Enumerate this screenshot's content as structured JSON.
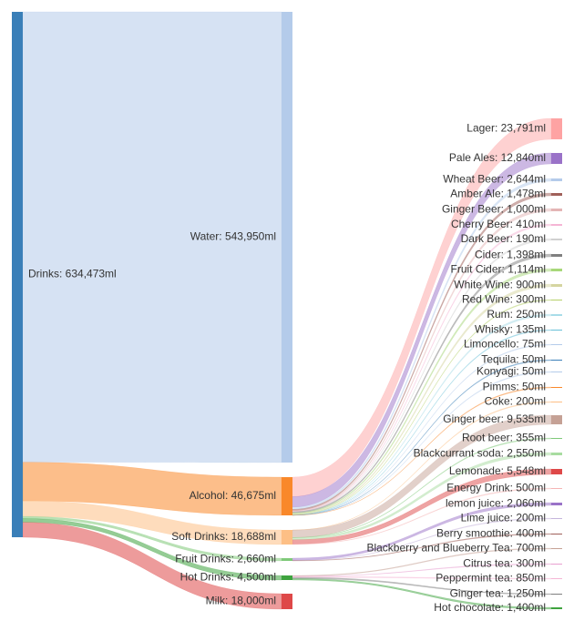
{
  "chart_data": {
    "type": "sankey",
    "unit": "ml",
    "colors": {
      "drinks": "#3a7fb8",
      "water": "#b4cbea",
      "alcohol": "#f9882a",
      "soft": "#fdbf85",
      "fruit": "#7fc979",
      "hot": "#3ea33e",
      "milk": "#de4848",
      "lager": "#fea3a3",
      "pale": "#9a72c8",
      "gingerbeer": "#c5a195",
      "lemonade": "#de4848",
      "lemonjuice": "#9a72c8"
    },
    "nodes": [
      {
        "id": "drinks",
        "label": "Drinks: 634,473ml",
        "value": 634473,
        "color": "drinks"
      },
      {
        "id": "water",
        "label": "Water: 543,950ml",
        "value": 543950,
        "color": "water"
      },
      {
        "id": "alcohol",
        "label": "Alcohol: 46,675ml",
        "value": 46675,
        "color": "alcohol"
      },
      {
        "id": "soft",
        "label": "Soft Drinks: 18,688ml",
        "value": 18688,
        "color": "soft"
      },
      {
        "id": "fruit",
        "label": "Fruit Drinks: 2,660ml",
        "value": 2660,
        "color": "fruit"
      },
      {
        "id": "hot",
        "label": "Hot Drinks: 4,500ml",
        "value": 4500,
        "color": "hot"
      },
      {
        "id": "milk",
        "label": "Milk: 18,000ml",
        "value": 18000,
        "color": "milk"
      },
      {
        "id": "lager",
        "label": "Lager: 23,791ml",
        "value": 23791,
        "color": "lager"
      },
      {
        "id": "pale",
        "label": "Pale Ales: 12,840ml",
        "value": 12840,
        "color": "pale"
      },
      {
        "id": "wheat",
        "label": "Wheat Beer: 2,644ml",
        "value": 2644,
        "color": "#b4cbea"
      },
      {
        "id": "amber",
        "label": "Amber Ale: 1,478ml",
        "value": 1478,
        "color": "#a0605a"
      },
      {
        "id": "gingerb1",
        "label": "Ginger Beer: 1,000ml",
        "value": 1000,
        "color": "#e4b5b5"
      },
      {
        "id": "cherry",
        "label": "Cherry Beer: 410ml",
        "value": 410,
        "color": "#f5b5d5"
      },
      {
        "id": "dark",
        "label": "Dark Beer: 190ml",
        "value": 190,
        "color": "#d0d0d0"
      },
      {
        "id": "cider",
        "label": "Cider: 1,398ml",
        "value": 1398,
        "color": "#7f7f7f"
      },
      {
        "id": "fcider",
        "label": "Fruit Cider: 1,114ml",
        "value": 1114,
        "color": "#a8d87a"
      },
      {
        "id": "wwine",
        "label": "White Wine: 900ml",
        "value": 900,
        "color": "#d5d5a0"
      },
      {
        "id": "rwine",
        "label": "Red Wine: 300ml",
        "value": 300,
        "color": "#b5d06a"
      },
      {
        "id": "rum",
        "label": "Rum: 250ml",
        "value": 250,
        "color": "#a8dce8"
      },
      {
        "id": "whisky",
        "label": "Whisky: 135ml",
        "value": 135,
        "color": "#68c0d8"
      },
      {
        "id": "limon",
        "label": "Limoncello: 75ml",
        "value": 75,
        "color": "#b4cbea"
      },
      {
        "id": "tequila",
        "label": "Tequila: 50ml",
        "value": 50,
        "color": "#3a7fb8"
      },
      {
        "id": "konyagi",
        "label": "Konyagi: 50ml",
        "value": 50,
        "color": "#b4cbea"
      },
      {
        "id": "pimms",
        "label": "Pimms: 50ml",
        "value": 50,
        "color": "#f9882a"
      },
      {
        "id": "coke",
        "label": "Coke: 200ml",
        "value": 200,
        "color": "#fdbf85"
      },
      {
        "id": "gingerbeer",
        "label": "Ginger beer: 9,535ml",
        "value": 9535,
        "color": "gingerbeer"
      },
      {
        "id": "rootbeer",
        "label": "Root beer: 355ml",
        "value": 355,
        "color": "#7fc979"
      },
      {
        "id": "blackcurrant",
        "label": "Blackcurrant soda: 2,550ml",
        "value": 2550,
        "color": "#a8dca0"
      },
      {
        "id": "lemonade",
        "label": "Lemonade: 5,548ml",
        "value": 5548,
        "color": "lemonade"
      },
      {
        "id": "energy",
        "label": "Energy Drink: 500ml",
        "value": 500,
        "color": "#f5b5b5"
      },
      {
        "id": "lemonjuice",
        "label": "lemon juice: 2,060ml",
        "value": 2060,
        "color": "lemonjuice"
      },
      {
        "id": "limejuice",
        "label": "Lime juice: 200ml",
        "value": 200,
        "color": "#c5b5dc"
      },
      {
        "id": "berry",
        "label": "Berry smoothie: 400ml",
        "value": 400,
        "color": "#a0605a"
      },
      {
        "id": "bbtea",
        "label": "Blackberry and Blueberry Tea: 700ml",
        "value": 700,
        "color": "#c5a195"
      },
      {
        "id": "citrus",
        "label": "Citrus tea: 300ml",
        "value": 300,
        "color": "#e8a0d0"
      },
      {
        "id": "pepper",
        "label": "Peppermint tea: 850ml",
        "value": 850,
        "color": "#f5b5d5"
      },
      {
        "id": "gingertea",
        "label": "Ginger tea: 1,250ml",
        "value": 1250,
        "color": "#7f7f7f"
      },
      {
        "id": "hotchoc",
        "label": "Hot chocolate: 1,400ml",
        "value": 1400,
        "color": "#3ea33e"
      }
    ],
    "links": [
      {
        "source": "drinks",
        "target": "water",
        "value": 543950
      },
      {
        "source": "drinks",
        "target": "alcohol",
        "value": 46675
      },
      {
        "source": "drinks",
        "target": "soft",
        "value": 18688
      },
      {
        "source": "drinks",
        "target": "fruit",
        "value": 2660
      },
      {
        "source": "drinks",
        "target": "hot",
        "value": 4500
      },
      {
        "source": "drinks",
        "target": "milk",
        "value": 18000
      },
      {
        "source": "alcohol",
        "target": "lager",
        "value": 23791
      },
      {
        "source": "alcohol",
        "target": "pale",
        "value": 12840
      },
      {
        "source": "alcohol",
        "target": "wheat",
        "value": 2644
      },
      {
        "source": "alcohol",
        "target": "amber",
        "value": 1478
      },
      {
        "source": "alcohol",
        "target": "gingerb1",
        "value": 1000
      },
      {
        "source": "alcohol",
        "target": "cherry",
        "value": 410
      },
      {
        "source": "alcohol",
        "target": "dark",
        "value": 190
      },
      {
        "source": "alcohol",
        "target": "cider",
        "value": 1398
      },
      {
        "source": "alcohol",
        "target": "fcider",
        "value": 1114
      },
      {
        "source": "alcohol",
        "target": "wwine",
        "value": 900
      },
      {
        "source": "alcohol",
        "target": "rwine",
        "value": 300
      },
      {
        "source": "alcohol",
        "target": "rum",
        "value": 250
      },
      {
        "source": "alcohol",
        "target": "whisky",
        "value": 135
      },
      {
        "source": "alcohol",
        "target": "limon",
        "value": 75
      },
      {
        "source": "alcohol",
        "target": "tequila",
        "value": 50
      },
      {
        "source": "alcohol",
        "target": "konyagi",
        "value": 50
      },
      {
        "source": "alcohol",
        "target": "pimms",
        "value": 50
      },
      {
        "source": "soft",
        "target": "coke",
        "value": 200
      },
      {
        "source": "soft",
        "target": "gingerbeer",
        "value": 9535
      },
      {
        "source": "soft",
        "target": "rootbeer",
        "value": 355
      },
      {
        "source": "soft",
        "target": "blackcurrant",
        "value": 2550
      },
      {
        "source": "soft",
        "target": "lemonade",
        "value": 5548
      },
      {
        "source": "soft",
        "target": "energy",
        "value": 500
      },
      {
        "source": "fruit",
        "target": "lemonjuice",
        "value": 2060
      },
      {
        "source": "fruit",
        "target": "limejuice",
        "value": 200
      },
      {
        "source": "fruit",
        "target": "berry",
        "value": 400
      },
      {
        "source": "hot",
        "target": "bbtea",
        "value": 700
      },
      {
        "source": "hot",
        "target": "citrus",
        "value": 300
      },
      {
        "source": "hot",
        "target": "pepper",
        "value": 850
      },
      {
        "source": "hot",
        "target": "gingertea",
        "value": 1250
      },
      {
        "source": "hot",
        "target": "hotchoc",
        "value": 1400
      }
    ]
  }
}
